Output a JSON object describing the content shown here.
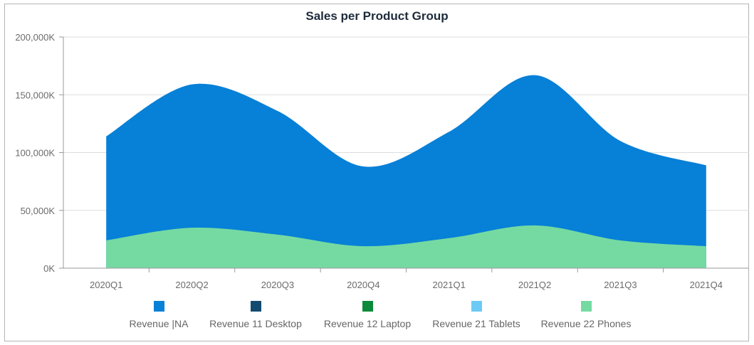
{
  "chart_data": {
    "type": "area",
    "title": "Sales per Product Group",
    "xlabel": "",
    "ylabel": "",
    "categories": [
      "2020Q1",
      "2020Q2",
      "2020Q3",
      "2020Q4",
      "2021Q1",
      "2021Q2",
      "2021Q3",
      "2021Q4"
    ],
    "y_tick_labels": [
      "0K",
      "50,000K",
      "100,000K",
      "150,000K",
      "200,000K"
    ],
    "ylim": [
      0,
      200000
    ],
    "grid": true,
    "legend_position": "bottom",
    "series": [
      {
        "name": "Revenue |NA",
        "color": "#0780d7",
        "values": [
          114000,
          159000,
          136000,
          88000,
          118000,
          167000,
          110000,
          89000
        ]
      },
      {
        "name": "Revenue 11 Desktop",
        "color": "#134b70",
        "values": [
          0,
          0,
          0,
          0,
          0,
          0,
          0,
          0
        ]
      },
      {
        "name": "Revenue 12 Laptop",
        "color": "#0a8a3a",
        "values": [
          0,
          0,
          0,
          0,
          0,
          0,
          0,
          0
        ]
      },
      {
        "name": "Revenue 21 Tablets",
        "color": "#6ccaf5",
        "values": [
          0,
          0,
          0,
          0,
          0,
          0,
          0,
          0
        ]
      },
      {
        "name": "Revenue 22 Phones",
        "color": "#75daa2",
        "values": [
          24000,
          35000,
          29000,
          19000,
          26000,
          37000,
          24000,
          19000
        ]
      }
    ]
  }
}
